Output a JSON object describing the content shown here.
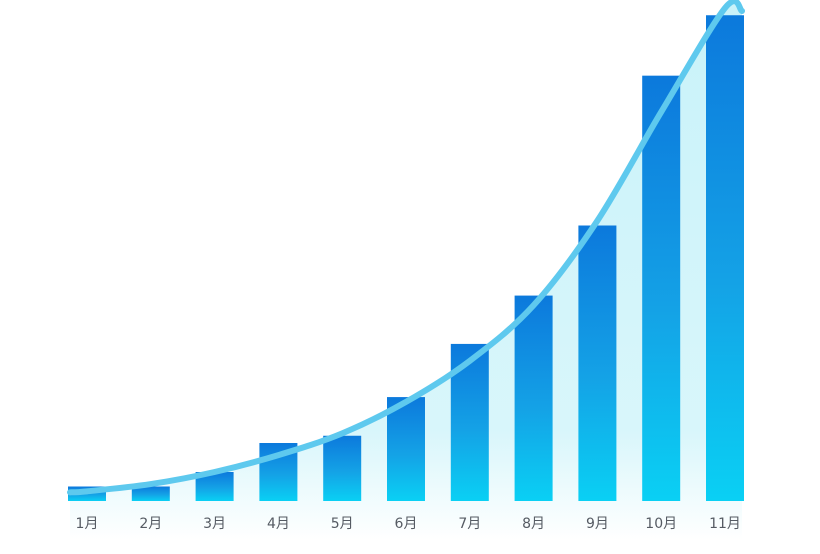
{
  "chart_data": {
    "type": "bar",
    "title": "",
    "xlabel": "",
    "ylabel": "",
    "categories": [
      "1月",
      "2月",
      "3月",
      "4月",
      "5月",
      "6月",
      "7月",
      "8月",
      "9月",
      "10月",
      "11月"
    ],
    "values": [
      3,
      3,
      6,
      12,
      13.5,
      21.5,
      32.5,
      42.5,
      57,
      88,
      100.5
    ],
    "trend_line": [
      2,
      3.5,
      6,
      9.5,
      14,
      20.5,
      29,
      40.5,
      58,
      80.5,
      102
    ],
    "ylim": [
      0,
      102
    ],
    "grid": false,
    "legend": "none",
    "colors": {
      "bar_top": "#0c79dc",
      "bar_mid": "#14a2e6",
      "bar_bottom": "#0ad0f4",
      "line": "#5ec9ee",
      "area_fill": "#bff0f8",
      "tick_text": "#555b63"
    }
  }
}
